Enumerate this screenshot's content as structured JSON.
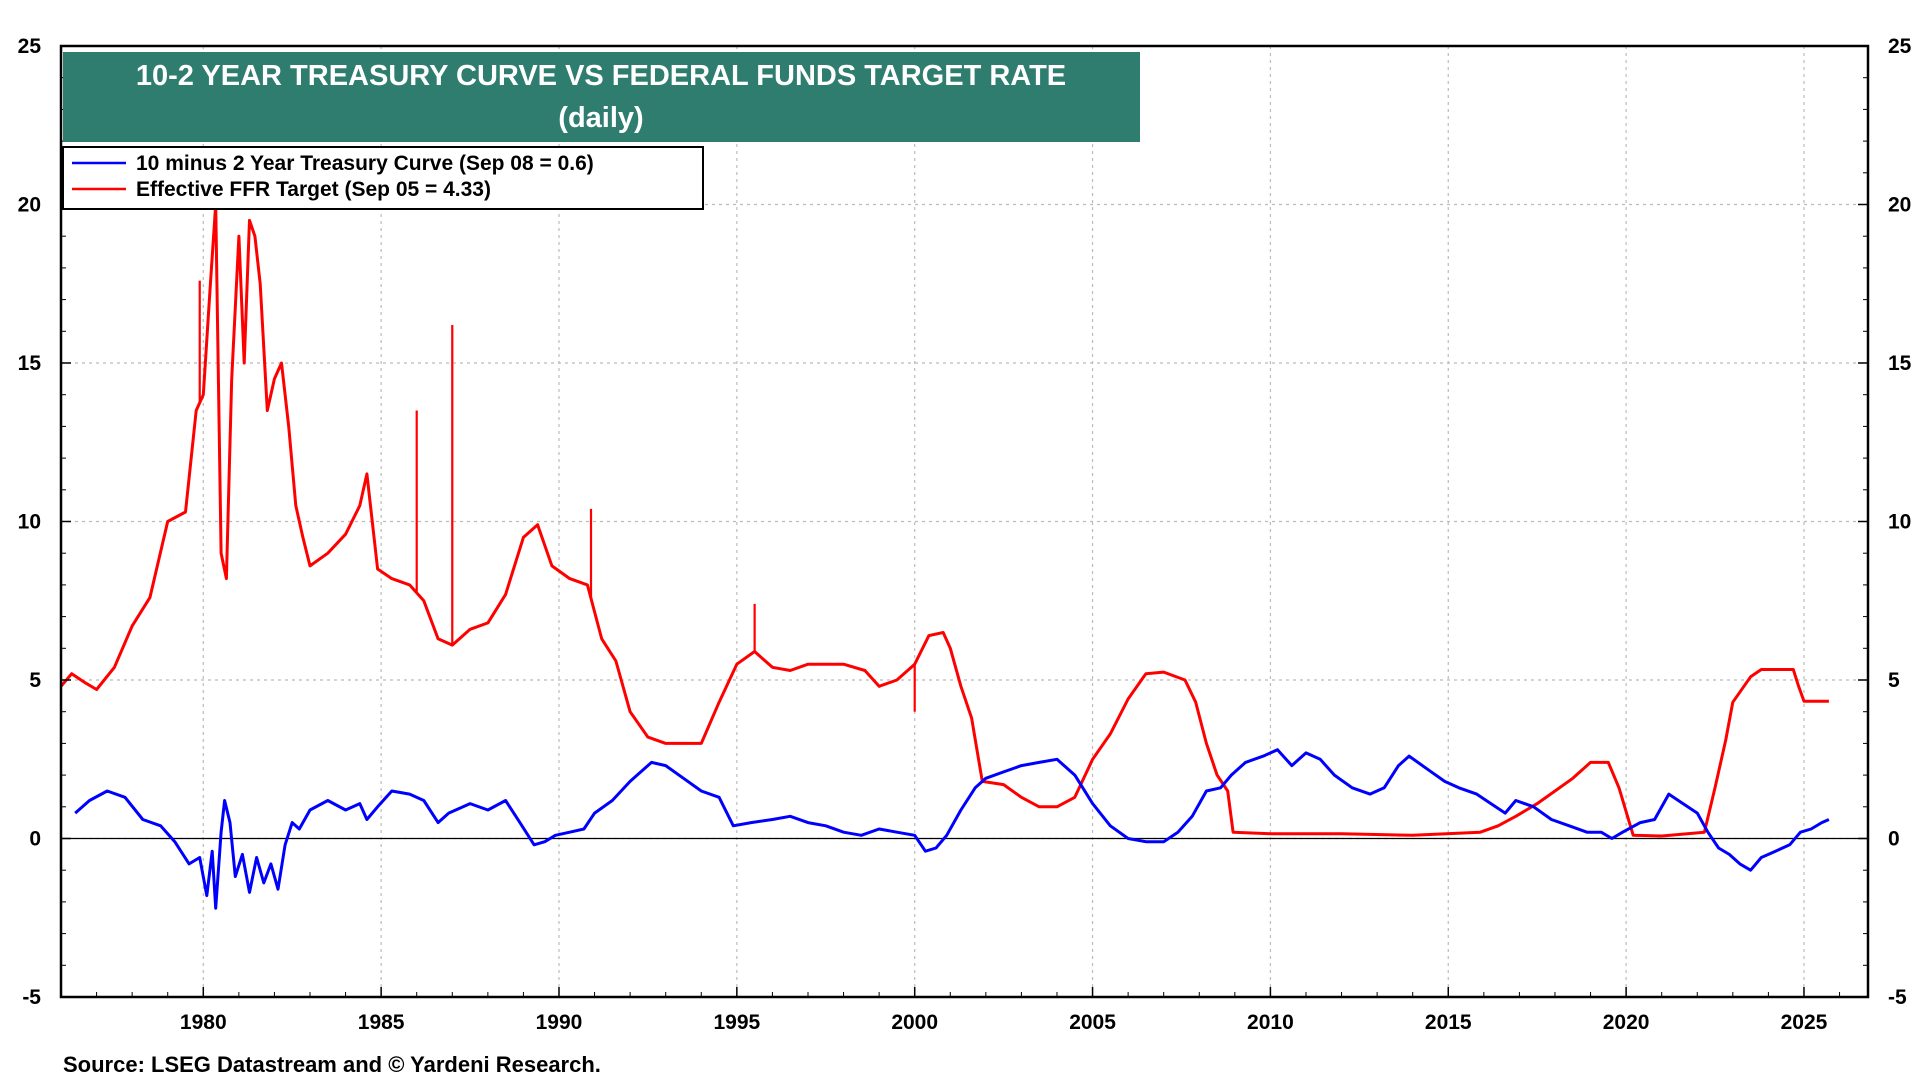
{
  "chart_data": {
    "type": "line",
    "title": "10-2 YEAR TREASURY CURVE VS FEDERAL FUNDS TARGET RATE",
    "subtitle": "(daily)",
    "source": "Source: LSEG Datastream and © Yardeni Research.",
    "xlim": [
      1976.0,
      2026.8
    ],
    "ylim": [
      -5,
      25
    ],
    "x_ticks": [
      1980,
      1985,
      1990,
      1995,
      2000,
      2005,
      2010,
      2015,
      2020,
      2025
    ],
    "y_ticks_left": [
      -5,
      0,
      5,
      10,
      15,
      20,
      25
    ],
    "y_ticks_right": [
      -5,
      0,
      5,
      10,
      15,
      20,
      25
    ],
    "grid": true,
    "legend_position": "top-left",
    "colors": {
      "title_bg": "#2e7d6f",
      "curve": "#0000ff",
      "ffr": "#ff0000",
      "zero_line": "#000000"
    },
    "series": [
      {
        "name": "10 minus 2 Year Treasury Curve (Sep 08 = 0.6)",
        "color": "#0000ff",
        "points": [
          [
            1976.4,
            0.8
          ],
          [
            1976.8,
            1.2
          ],
          [
            1977.3,
            1.5
          ],
          [
            1977.8,
            1.3
          ],
          [
            1978.3,
            0.6
          ],
          [
            1978.8,
            0.4
          ],
          [
            1979.2,
            -0.1
          ],
          [
            1979.6,
            -0.8
          ],
          [
            1979.9,
            -0.6
          ],
          [
            1980.1,
            -1.8
          ],
          [
            1980.25,
            -0.4
          ],
          [
            1980.35,
            -2.2
          ],
          [
            1980.5,
            0.2
          ],
          [
            1980.6,
            1.2
          ],
          [
            1980.75,
            0.5
          ],
          [
            1980.9,
            -1.2
          ],
          [
            1981.1,
            -0.5
          ],
          [
            1981.3,
            -1.7
          ],
          [
            1981.5,
            -0.6
          ],
          [
            1981.7,
            -1.4
          ],
          [
            1981.9,
            -0.8
          ],
          [
            1982.1,
            -1.6
          ],
          [
            1982.3,
            -0.2
          ],
          [
            1982.5,
            0.5
          ],
          [
            1982.7,
            0.3
          ],
          [
            1983.0,
            0.9
          ],
          [
            1983.5,
            1.2
          ],
          [
            1984.0,
            0.9
          ],
          [
            1984.4,
            1.1
          ],
          [
            1984.6,
            0.6
          ],
          [
            1984.9,
            1.0
          ],
          [
            1985.3,
            1.5
          ],
          [
            1985.8,
            1.4
          ],
          [
            1986.2,
            1.2
          ],
          [
            1986.6,
            0.5
          ],
          [
            1986.9,
            0.8
          ],
          [
            1987.5,
            1.1
          ],
          [
            1988.0,
            0.9
          ],
          [
            1988.5,
            1.2
          ],
          [
            1988.9,
            0.5
          ],
          [
            1989.3,
            -0.2
          ],
          [
            1989.6,
            -0.1
          ],
          [
            1989.9,
            0.1
          ],
          [
            1990.3,
            0.2
          ],
          [
            1990.7,
            0.3
          ],
          [
            1991.0,
            0.8
          ],
          [
            1991.5,
            1.2
          ],
          [
            1992.0,
            1.8
          ],
          [
            1992.6,
            2.4
          ],
          [
            1993.0,
            2.3
          ],
          [
            1993.5,
            1.9
          ],
          [
            1994.0,
            1.5
          ],
          [
            1994.5,
            1.3
          ],
          [
            1994.9,
            0.4
          ],
          [
            1995.4,
            0.5
          ],
          [
            1996.0,
            0.6
          ],
          [
            1996.5,
            0.7
          ],
          [
            1997.0,
            0.5
          ],
          [
            1997.5,
            0.4
          ],
          [
            1998.0,
            0.2
          ],
          [
            1998.5,
            0.1
          ],
          [
            1999.0,
            0.3
          ],
          [
            1999.5,
            0.2
          ],
          [
            2000.0,
            0.1
          ],
          [
            2000.3,
            -0.4
          ],
          [
            2000.6,
            -0.3
          ],
          [
            2000.9,
            0.1
          ],
          [
            2001.3,
            0.9
          ],
          [
            2001.7,
            1.6
          ],
          [
            2002.0,
            1.9
          ],
          [
            2002.5,
            2.1
          ],
          [
            2003.0,
            2.3
          ],
          [
            2003.5,
            2.4
          ],
          [
            2004.0,
            2.5
          ],
          [
            2004.5,
            2.0
          ],
          [
            2005.0,
            1.1
          ],
          [
            2005.5,
            0.4
          ],
          [
            2006.0,
            0.0
          ],
          [
            2006.5,
            -0.1
          ],
          [
            2007.0,
            -0.1
          ],
          [
            2007.4,
            0.2
          ],
          [
            2007.8,
            0.7
          ],
          [
            2008.2,
            1.5
          ],
          [
            2008.6,
            1.6
          ],
          [
            2008.9,
            2.0
          ],
          [
            2009.3,
            2.4
          ],
          [
            2009.8,
            2.6
          ],
          [
            2010.2,
            2.8
          ],
          [
            2010.6,
            2.3
          ],
          [
            2011.0,
            2.7
          ],
          [
            2011.4,
            2.5
          ],
          [
            2011.8,
            2.0
          ],
          [
            2012.3,
            1.6
          ],
          [
            2012.8,
            1.4
          ],
          [
            2013.2,
            1.6
          ],
          [
            2013.6,
            2.3
          ],
          [
            2013.9,
            2.6
          ],
          [
            2014.4,
            2.2
          ],
          [
            2014.9,
            1.8
          ],
          [
            2015.3,
            1.6
          ],
          [
            2015.8,
            1.4
          ],
          [
            2016.2,
            1.1
          ],
          [
            2016.6,
            0.8
          ],
          [
            2016.9,
            1.2
          ],
          [
            2017.4,
            1.0
          ],
          [
            2017.9,
            0.6
          ],
          [
            2018.4,
            0.4
          ],
          [
            2018.9,
            0.2
          ],
          [
            2019.3,
            0.2
          ],
          [
            2019.6,
            0.0
          ],
          [
            2019.9,
            0.2
          ],
          [
            2020.4,
            0.5
          ],
          [
            2020.8,
            0.6
          ],
          [
            2021.2,
            1.4
          ],
          [
            2021.6,
            1.1
          ],
          [
            2022.0,
            0.8
          ],
          [
            2022.3,
            0.2
          ],
          [
            2022.6,
            -0.3
          ],
          [
            2022.9,
            -0.5
          ],
          [
            2023.2,
            -0.8
          ],
          [
            2023.5,
            -1.0
          ],
          [
            2023.8,
            -0.6
          ],
          [
            2024.2,
            -0.4
          ],
          [
            2024.6,
            -0.2
          ],
          [
            2024.9,
            0.2
          ],
          [
            2025.2,
            0.3
          ],
          [
            2025.5,
            0.5
          ],
          [
            2025.7,
            0.6
          ]
        ]
      },
      {
        "name": "Effective FFR Target (Sep 05 = 4.33)",
        "color": "#ff0000",
        "points": [
          [
            1976.0,
            4.8
          ],
          [
            1976.3,
            5.2
          ],
          [
            1976.7,
            4.9
          ],
          [
            1977.0,
            4.7
          ],
          [
            1977.5,
            5.4
          ],
          [
            1978.0,
            6.7
          ],
          [
            1978.5,
            7.6
          ],
          [
            1979.0,
            10.0
          ],
          [
            1979.5,
            10.3
          ],
          [
            1979.8,
            13.5
          ],
          [
            1980.0,
            14.0
          ],
          [
            1980.2,
            17.5
          ],
          [
            1980.35,
            20.0
          ],
          [
            1980.5,
            9.0
          ],
          [
            1980.65,
            8.2
          ],
          [
            1980.8,
            14.5
          ],
          [
            1981.0,
            19.0
          ],
          [
            1981.15,
            15.0
          ],
          [
            1981.3,
            19.5
          ],
          [
            1981.45,
            19.0
          ],
          [
            1981.6,
            17.5
          ],
          [
            1981.8,
            13.5
          ],
          [
            1982.0,
            14.5
          ],
          [
            1982.2,
            15.0
          ],
          [
            1982.4,
            13.0
          ],
          [
            1982.6,
            10.5
          ],
          [
            1982.8,
            9.5
          ],
          [
            1983.0,
            8.6
          ],
          [
            1983.5,
            9.0
          ],
          [
            1984.0,
            9.6
          ],
          [
            1984.4,
            10.5
          ],
          [
            1984.6,
            11.5
          ],
          [
            1984.9,
            8.5
          ],
          [
            1985.3,
            8.2
          ],
          [
            1985.8,
            8.0
          ],
          [
            1986.2,
            7.5
          ],
          [
            1986.6,
            6.3
          ],
          [
            1987.0,
            6.1
          ],
          [
            1987.5,
            6.6
          ],
          [
            1988.0,
            6.8
          ],
          [
            1988.5,
            7.7
          ],
          [
            1989.0,
            9.5
          ],
          [
            1989.4,
            9.9
          ],
          [
            1989.8,
            8.6
          ],
          [
            1990.3,
            8.2
          ],
          [
            1990.8,
            8.0
          ],
          [
            1991.2,
            6.3
          ],
          [
            1991.6,
            5.6
          ],
          [
            1992.0,
            4.0
          ],
          [
            1992.5,
            3.2
          ],
          [
            1993.0,
            3.0
          ],
          [
            1993.5,
            3.0
          ],
          [
            1994.0,
            3.0
          ],
          [
            1994.5,
            4.3
          ],
          [
            1995.0,
            5.5
          ],
          [
            1995.5,
            5.9
          ],
          [
            1996.0,
            5.4
          ],
          [
            1996.5,
            5.3
          ],
          [
            1997.0,
            5.5
          ],
          [
            1997.5,
            5.5
          ],
          [
            1998.0,
            5.5
          ],
          [
            1998.6,
            5.3
          ],
          [
            1999.0,
            4.8
          ],
          [
            1999.5,
            5.0
          ],
          [
            2000.0,
            5.5
          ],
          [
            2000.4,
            6.4
          ],
          [
            2000.8,
            6.5
          ],
          [
            2001.0,
            6.0
          ],
          [
            2001.3,
            4.8
          ],
          [
            2001.6,
            3.8
          ],
          [
            2001.9,
            1.8
          ],
          [
            2002.5,
            1.7
          ],
          [
            2003.0,
            1.3
          ],
          [
            2003.5,
            1.0
          ],
          [
            2004.0,
            1.0
          ],
          [
            2004.5,
            1.3
          ],
          [
            2005.0,
            2.5
          ],
          [
            2005.5,
            3.3
          ],
          [
            2006.0,
            4.4
          ],
          [
            2006.5,
            5.2
          ],
          [
            2007.0,
            5.25
          ],
          [
            2007.6,
            5.0
          ],
          [
            2007.9,
            4.3
          ],
          [
            2008.2,
            3.0
          ],
          [
            2008.5,
            2.0
          ],
          [
            2008.8,
            1.5
          ],
          [
            2008.95,
            0.2
          ],
          [
            2010.0,
            0.15
          ],
          [
            2012.0,
            0.15
          ],
          [
            2014.0,
            0.1
          ],
          [
            2015.9,
            0.2
          ],
          [
            2016.4,
            0.4
          ],
          [
            2016.9,
            0.7
          ],
          [
            2017.5,
            1.1
          ],
          [
            2018.0,
            1.5
          ],
          [
            2018.5,
            1.9
          ],
          [
            2019.0,
            2.4
          ],
          [
            2019.5,
            2.4
          ],
          [
            2019.8,
            1.6
          ],
          [
            2020.2,
            0.1
          ],
          [
            2021.0,
            0.08
          ],
          [
            2022.2,
            0.2
          ],
          [
            2022.5,
            1.6
          ],
          [
            2022.8,
            3.1
          ],
          [
            2023.0,
            4.3
          ],
          [
            2023.5,
            5.1
          ],
          [
            2023.8,
            5.33
          ],
          [
            2024.7,
            5.33
          ],
          [
            2024.85,
            4.8
          ],
          [
            2025.0,
            4.33
          ],
          [
            2025.7,
            4.33
          ]
        ]
      }
    ],
    "spikes": [
      {
        "series": 1,
        "x": 1987.0,
        "y": 16.2
      },
      {
        "series": 1,
        "x": 1986.0,
        "y": 13.5
      },
      {
        "series": 1,
        "x": 1979.9,
        "y": 17.6
      },
      {
        "series": 1,
        "x": 1990.9,
        "y": 10.4
      },
      {
        "series": 1,
        "x": 1995.5,
        "y": 7.4
      },
      {
        "series": 1,
        "x": 2000.0,
        "y": 4.0
      }
    ]
  }
}
